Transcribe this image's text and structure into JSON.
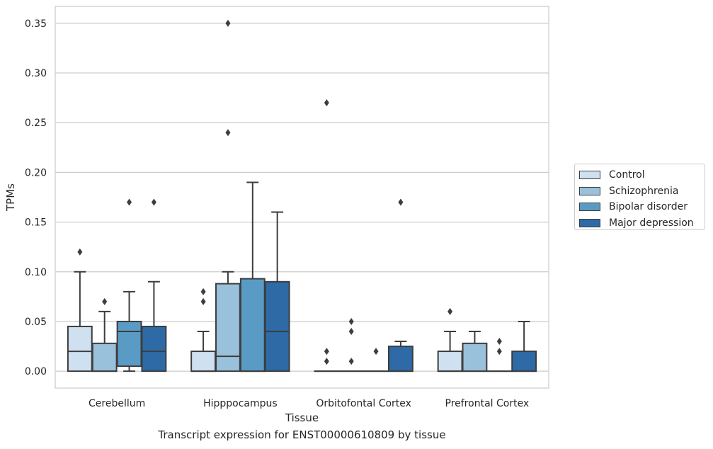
{
  "chart_data": {
    "type": "box",
    "title": "Transcript expression for ENST00000610809 by tissue",
    "xlabel": "Tissue",
    "ylabel": "TPMs",
    "ylim": [
      -0.017,
      0.367
    ],
    "yticks": [
      "0.00",
      "0.05",
      "0.10",
      "0.15",
      "0.20",
      "0.25",
      "0.30",
      "0.35"
    ],
    "grid": true,
    "legend_position": "right",
    "categories": [
      "Cerebellum",
      "Hipppocampus",
      "Orbitofontal Cortex",
      "Prefrontal Cortex"
    ],
    "series": [
      {
        "name": "Control",
        "color": "#cfe0f0",
        "boxes": [
          {
            "q1": 0.0,
            "median": 0.02,
            "q3": 0.045,
            "whisker_low": 0.0,
            "whisker_high": 0.1,
            "outliers": [
              0.12
            ]
          },
          {
            "q1": 0.0,
            "median": 0.0,
            "q3": 0.02,
            "whisker_low": 0.0,
            "whisker_high": 0.04,
            "outliers": [
              0.07,
              0.08
            ]
          },
          {
            "q1": 0.0,
            "median": 0.0,
            "q3": 0.0,
            "whisker_low": 0.0,
            "whisker_high": 0.0,
            "outliers": [
              0.01,
              0.02,
              0.27
            ]
          },
          {
            "q1": 0.0,
            "median": 0.0,
            "q3": 0.02,
            "whisker_low": 0.0,
            "whisker_high": 0.04,
            "outliers": [
              0.06
            ]
          }
        ]
      },
      {
        "name": "Schizophrenia",
        "color": "#9ac1dc",
        "boxes": [
          {
            "q1": 0.0,
            "median": 0.0,
            "q3": 0.028,
            "whisker_low": 0.0,
            "whisker_high": 0.06,
            "outliers": [
              0.07
            ]
          },
          {
            "q1": 0.0,
            "median": 0.015,
            "q3": 0.088,
            "whisker_low": 0.0,
            "whisker_high": 0.1,
            "outliers": [
              0.24,
              0.35
            ]
          },
          {
            "q1": 0.0,
            "median": 0.0,
            "q3": 0.0,
            "whisker_low": 0.0,
            "whisker_high": 0.0,
            "outliers": [
              0.01,
              0.04,
              0.05
            ]
          },
          {
            "q1": 0.0,
            "median": 0.0,
            "q3": 0.028,
            "whisker_low": 0.0,
            "whisker_high": 0.04,
            "outliers": []
          }
        ]
      },
      {
        "name": "Bipolar disorder",
        "color": "#5a9bc6",
        "boxes": [
          {
            "q1": 0.005,
            "median": 0.04,
            "q3": 0.05,
            "whisker_low": 0.0,
            "whisker_high": 0.08,
            "outliers": [
              0.17
            ]
          },
          {
            "q1": 0.0,
            "median": 0.0,
            "q3": 0.093,
            "whisker_low": 0.0,
            "whisker_high": 0.19,
            "outliers": []
          },
          {
            "q1": 0.0,
            "median": 0.0,
            "q3": 0.0,
            "whisker_low": 0.0,
            "whisker_high": 0.0,
            "outliers": [
              0.02
            ]
          },
          {
            "q1": 0.0,
            "median": 0.0,
            "q3": 0.0,
            "whisker_low": 0.0,
            "whisker_high": 0.0,
            "outliers": [
              0.02,
              0.03
            ]
          }
        ]
      },
      {
        "name": "Major depression",
        "color": "#2d6aa6",
        "boxes": [
          {
            "q1": 0.0,
            "median": 0.02,
            "q3": 0.045,
            "whisker_low": 0.0,
            "whisker_high": 0.09,
            "outliers": [
              0.17
            ]
          },
          {
            "q1": 0.0,
            "median": 0.04,
            "q3": 0.09,
            "whisker_low": 0.0,
            "whisker_high": 0.16,
            "outliers": []
          },
          {
            "q1": 0.0,
            "median": 0.0,
            "q3": 0.025,
            "whisker_low": 0.0,
            "whisker_high": 0.03,
            "outliers": [
              0.17
            ]
          },
          {
            "q1": 0.0,
            "median": 0.0,
            "q3": 0.02,
            "whisker_low": 0.0,
            "whisker_high": 0.05,
            "outliers": []
          }
        ]
      }
    ]
  }
}
